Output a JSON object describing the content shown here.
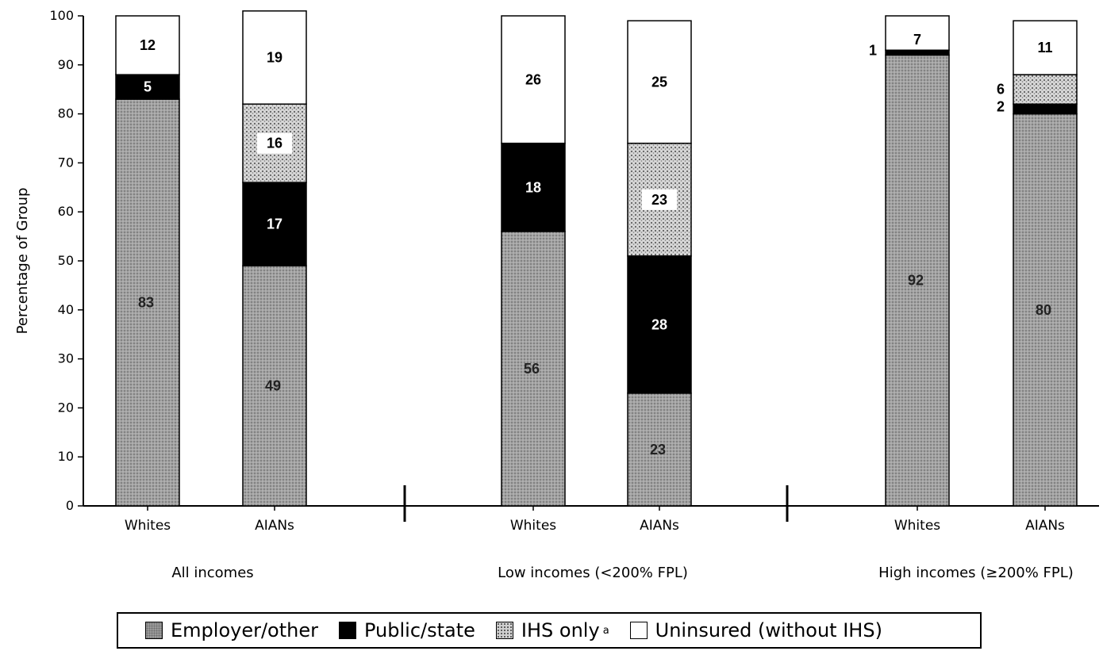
{
  "chart_data": {
    "type": "bar",
    "stacked": true,
    "ylabel": "Percentage of Group",
    "ylim": [
      0,
      100
    ],
    "yticks": [
      0,
      10,
      20,
      30,
      40,
      50,
      60,
      70,
      80,
      90,
      100
    ],
    "groups": [
      "All incomes",
      "Low incomes (<200% FPL)",
      "High incomes (≥200% FPL)"
    ],
    "categories": [
      "Whites",
      "AIANs",
      "Whites",
      "AIANs",
      "Whites",
      "AIANs"
    ],
    "series": [
      {
        "name": "Employer/other",
        "values": [
          83,
          49,
          56,
          23,
          92,
          80
        ],
        "color": "#9a9a9a"
      },
      {
        "name": "Public/state",
        "values": [
          5,
          17,
          18,
          28,
          1,
          2
        ],
        "color": "#000000"
      },
      {
        "name": "IHS only",
        "values": [
          0,
          16,
          0,
          23,
          0,
          6
        ],
        "color": "#cfcfcf"
      },
      {
        "name": "Uninsured (without IHS)",
        "values": [
          12,
          19,
          26,
          25,
          7,
          11
        ],
        "color": "#ffffff"
      }
    ],
    "legend_position": "bottom",
    "grid": false
  },
  "legend": {
    "items": [
      "Employer/other",
      "Public/state",
      "IHS only",
      "Uninsured (without IHS)"
    ],
    "footnote_mark": "a"
  }
}
